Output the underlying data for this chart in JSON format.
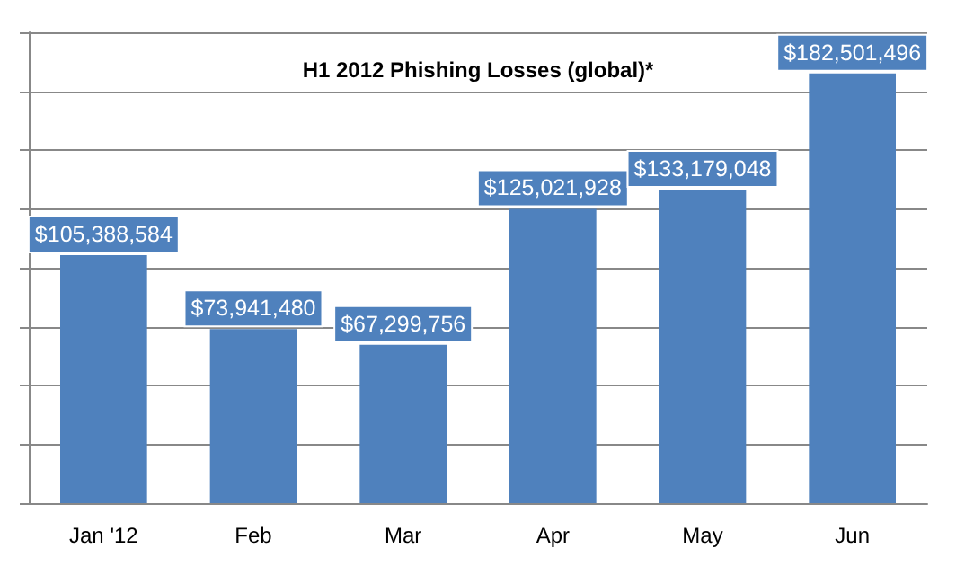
{
  "chart_data": {
    "type": "bar",
    "title": "H1 2012 Phishing Losses (global)*",
    "categories": [
      "Jan '12",
      "Feb",
      "Mar",
      "Apr",
      "May",
      "Jun"
    ],
    "values": [
      105388584,
      73941480,
      67299756,
      125021928,
      133179048,
      182501496
    ],
    "value_labels": [
      "$105,388,584",
      "$73,941,480",
      "$67,299,756",
      "$125,021,928",
      "$133,179,048",
      "$182,501,496"
    ],
    "color": "#4f81bd",
    "ylim": [
      0,
      200000000
    ],
    "yticks": [
      {
        "value": 0,
        "label": null
      },
      {
        "value": 25000000,
        "label": null
      },
      {
        "value": 50000000,
        "label": null
      },
      {
        "value": 75000000,
        "label": null
      },
      {
        "value": 100000000,
        "label": null
      },
      {
        "value": 125000000,
        "label": null
      },
      {
        "value": 150000000,
        "label": null
      },
      {
        "value": 175000000,
        "label": null
      },
      {
        "value": 200000000,
        "label": null
      }
    ],
    "grid": "y",
    "tick_labels": "x"
  }
}
